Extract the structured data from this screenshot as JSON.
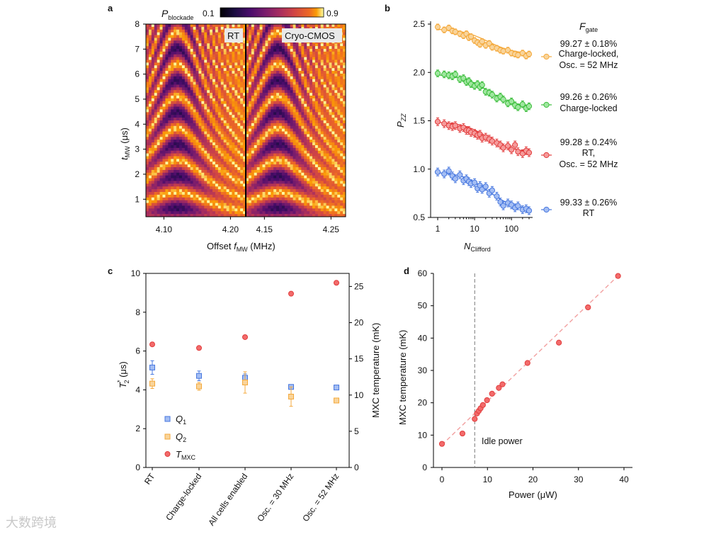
{
  "panels": {
    "a": "a",
    "b": "b",
    "c": "c",
    "d": "d"
  },
  "watermark": "大数跨境",
  "chart_data": [
    {
      "id": "a",
      "type": "heatmap",
      "colorbar": {
        "label_base": "P",
        "label_sub": "blockade",
        "min_label": "0.1",
        "max_label": "0.9",
        "min": 0.1,
        "max": 0.9
      },
      "ylabel_base": "t",
      "ylabel_sub": "MW",
      "ylabel_unit": " (μs)",
      "xlabel_pre": "Offset ",
      "xlabel_base": "f",
      "xlabel_sub": "MW",
      "xlabel_unit": " (MHz)",
      "ylim": [
        0.3,
        8
      ],
      "yticks": [
        "1",
        "2",
        "3",
        "4",
        "5",
        "6",
        "7",
        "8"
      ],
      "subpanels": [
        {
          "name": "RT",
          "xlim": [
            4.073,
            4.223
          ],
          "center": 4.12,
          "xticks": [
            "4.10",
            "4.20"
          ],
          "xtick_values": [
            4.1,
            4.2
          ]
        },
        {
          "name": "Cryo-CMOS",
          "xlim": [
            4.122,
            4.272
          ],
          "center": 4.17,
          "xticks": [
            "4.15",
            "4.25"
          ],
          "xtick_values": [
            4.15,
            4.25
          ]
        }
      ]
    },
    {
      "id": "b",
      "type": "scatter",
      "xlabel_base": "N",
      "xlabel_sub": "Clifford",
      "ylabel_base": "P",
      "ylabel_sub": "ZZ",
      "xscale": "log",
      "xlim": [
        0.8,
        400
      ],
      "ylim": [
        0.5,
        2.5
      ],
      "yticks": [
        "0.5",
        "1.0",
        "1.5",
        "2.0",
        "2.5"
      ],
      "xticks": [
        "1",
        "10",
        "100"
      ],
      "legend_title_base": "F",
      "legend_title_sub": "gate",
      "x": [
        1,
        1.5,
        2,
        2.5,
        3,
        4,
        5,
        6,
        7,
        8,
        10,
        12,
        14,
        16,
        20,
        25,
        30,
        40,
        50,
        60,
        80,
        100,
        125,
        150,
        200,
        250,
        300
      ],
      "series": [
        {
          "name": "Charge-locked, Osc. = 52 MHz",
          "color": "#F4A93C",
          "fill": "#F9D49A",
          "fidelity": "99.27 ± 0.18%",
          "label_lines": [
            "Charge-locked,",
            "Osc. = 52 MHz"
          ],
          "start": 2.45,
          "end": 2.19,
          "err": 0.03,
          "values": [
            2.47,
            2.44,
            2.46,
            2.43,
            2.42,
            2.4,
            2.38,
            2.4,
            2.36,
            2.37,
            2.33,
            2.31,
            2.29,
            2.32,
            2.28,
            2.3,
            2.26,
            2.25,
            2.23,
            2.22,
            2.23,
            2.2,
            2.19,
            2.18,
            2.2,
            2.17,
            2.19
          ]
        },
        {
          "name": "Charge-locked",
          "color": "#3DBE3D",
          "fill": "#9FE79F",
          "fidelity": "99.26 ± 0.26%",
          "label_lines": [
            "Charge-locked"
          ],
          "start": 1.98,
          "end": 1.64,
          "err": 0.035,
          "values": [
            1.99,
            1.98,
            1.97,
            1.96,
            1.98,
            1.93,
            1.94,
            1.9,
            1.91,
            1.88,
            1.86,
            1.88,
            1.85,
            1.87,
            1.8,
            1.79,
            1.77,
            1.73,
            1.75,
            1.72,
            1.68,
            1.7,
            1.66,
            1.64,
            1.67,
            1.63,
            1.65
          ]
        },
        {
          "name": "RT, Osc. = 52 MHz",
          "color": "#E23C3C",
          "fill": "#F59A9A",
          "fidelity": "99.28 ± 0.24%",
          "label_lines": [
            "RT,",
            "Osc. = 52 MHz"
          ],
          "start": 1.49,
          "end": 1.17,
          "err": 0.04,
          "values": [
            1.49,
            1.47,
            1.45,
            1.44,
            1.45,
            1.42,
            1.43,
            1.4,
            1.4,
            1.38,
            1.37,
            1.35,
            1.36,
            1.32,
            1.33,
            1.31,
            1.29,
            1.27,
            1.25,
            1.22,
            1.24,
            1.2,
            1.25,
            1.18,
            1.16,
            1.19,
            1.17
          ]
        },
        {
          "name": "RT",
          "color": "#4777DF",
          "fill": "#A3BDF3",
          "fidelity": "99.33 ± 0.26%",
          "label_lines": [
            "RT"
          ],
          "start": 0.97,
          "end": 0.58,
          "err": 0.04,
          "values": [
            0.97,
            0.95,
            0.98,
            0.93,
            0.9,
            0.94,
            0.88,
            0.9,
            0.87,
            0.85,
            0.86,
            0.8,
            0.83,
            0.79,
            0.82,
            0.75,
            0.78,
            0.72,
            0.66,
            0.62,
            0.65,
            0.63,
            0.6,
            0.62,
            0.58,
            0.59,
            0.57
          ]
        }
      ]
    },
    {
      "id": "c",
      "type": "scatter",
      "categories": [
        "RT",
        "Charge-locked",
        "All cells enabled",
        "Osc. = 30 MHz",
        "Osc. = 52 MHz"
      ],
      "ylabel_base": "T",
      "ylabel_sup": "*",
      "ylabel_sub": "2",
      "ylabel_unit": " (μs)",
      "ylim": [
        0,
        10
      ],
      "yticks": [
        "0",
        "2",
        "4",
        "6",
        "8",
        "10"
      ],
      "y2label": "MXC temperature (mK)",
      "y2lim": [
        0,
        26.8
      ],
      "y2ticks": [
        "0",
        "5",
        "10",
        "15",
        "20",
        "25"
      ],
      "series": [
        {
          "name": "Q",
          "sub": "1",
          "color": "#4777DF",
          "fill": "#A3BDF3",
          "marker": "square",
          "axis": "left",
          "values": [
            5.15,
            4.72,
            4.62,
            4.15,
            4.12
          ],
          "err": [
            0.35,
            0.25,
            0.2,
            0.05,
            0.05
          ]
        },
        {
          "name": "Q",
          "sub": "2",
          "color": "#F4A93C",
          "fill": "#F9D49A",
          "marker": "square",
          "axis": "left",
          "values": [
            4.32,
            4.18,
            4.38,
            3.65,
            3.45
          ],
          "err": [
            0.25,
            0.2,
            0.55,
            0.5,
            0.05
          ]
        },
        {
          "name": "T",
          "sub": "MXC",
          "color": "#E23C3C",
          "fill": "#F26B6B",
          "marker": "circle",
          "axis": "right",
          "values": [
            17.0,
            16.5,
            18.0,
            24.0,
            25.5
          ]
        }
      ]
    },
    {
      "id": "d",
      "type": "scatter",
      "xlabel": "Power (μW)",
      "ylabel": "MXC temperature (mK)",
      "xlim": [
        -1.5,
        40.5
      ],
      "ylim": [
        0,
        60
      ],
      "xticks": [
        "0",
        "10",
        "20",
        "30",
        "40"
      ],
      "yticks": [
        "0",
        "10",
        "20",
        "30",
        "40",
        "50",
        "60"
      ],
      "annotation": "Idle power",
      "idle_power": 7.2,
      "fit": {
        "slope": 1.35,
        "intercept": 7.0,
        "x_range": [
          0,
          39
        ]
      },
      "color": "#E23C3C",
      "fill": "#F26B6B",
      "x": [
        0,
        4.5,
        7.2,
        7.7,
        8.1,
        8.5,
        9.0,
        9.9,
        11.0,
        12.5,
        13.3,
        18.8,
        25.7,
        32.1,
        38.7
      ],
      "y": [
        7.3,
        10.5,
        15.0,
        16.7,
        17.5,
        18.3,
        19.3,
        20.8,
        22.8,
        24.6,
        25.7,
        32.3,
        38.6,
        49.5,
        59.2
      ]
    }
  ]
}
